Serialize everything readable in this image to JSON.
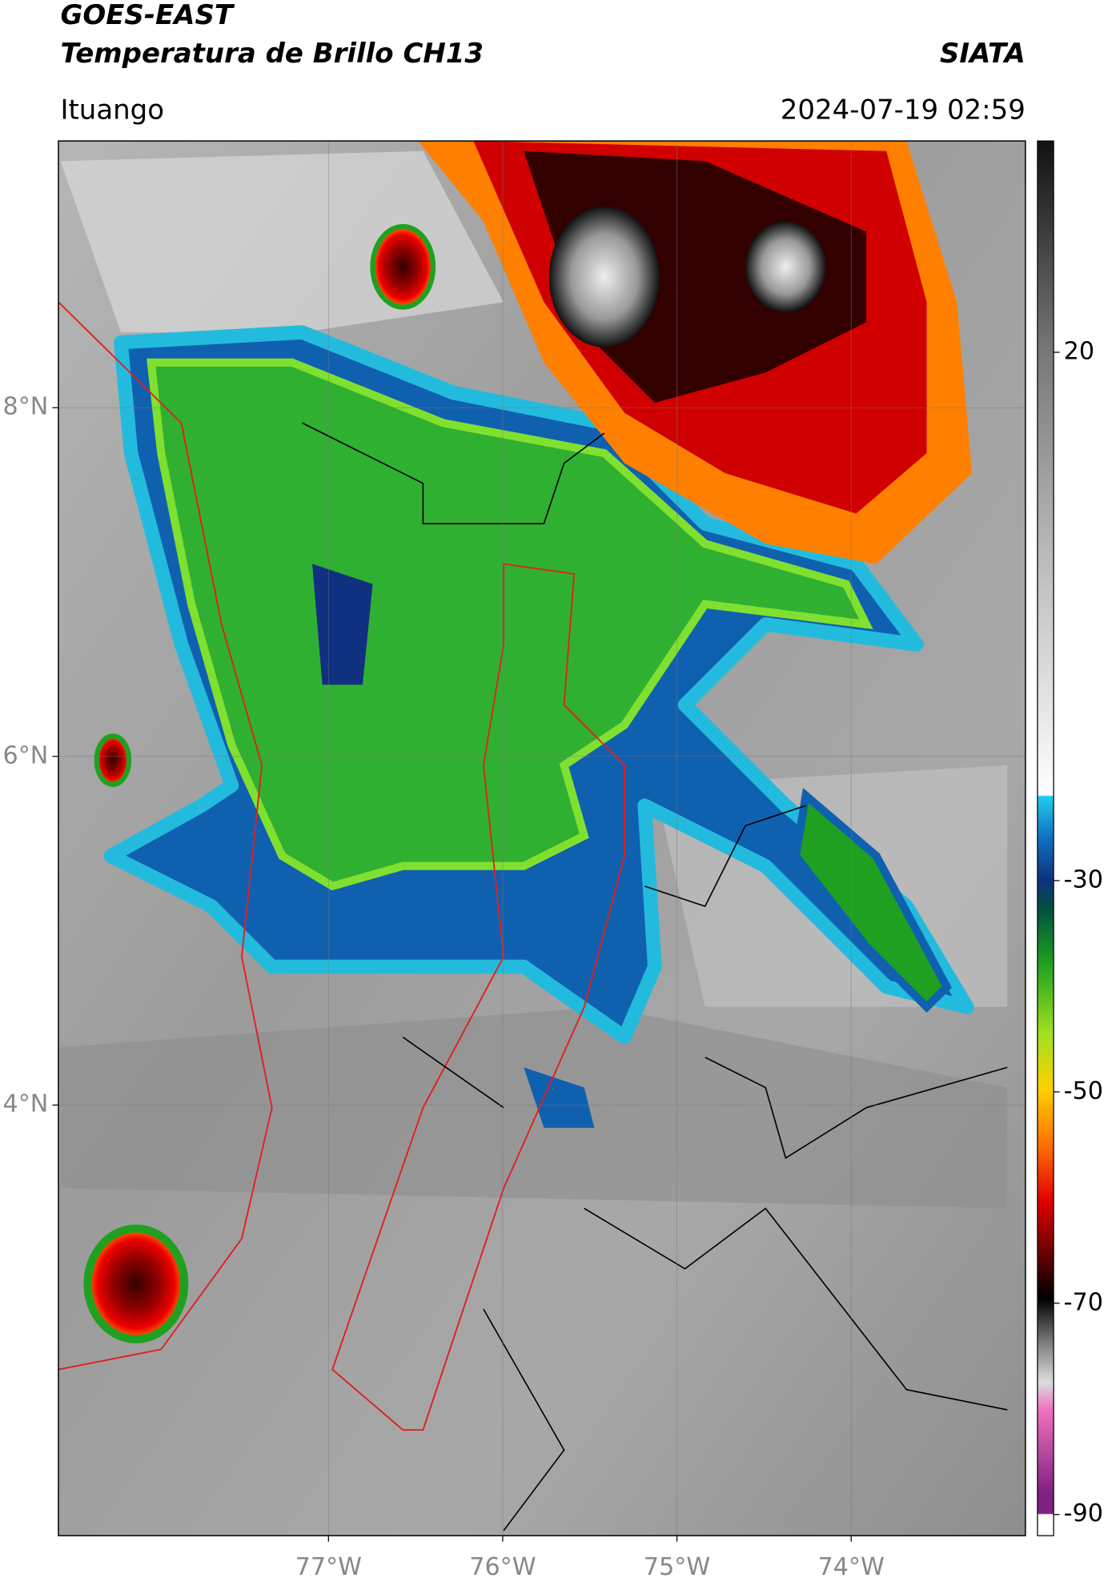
{
  "header": {
    "title": "GOES-EAST",
    "subtitle": "Temperatura de Brillo CH13",
    "source": "SIATA",
    "location": "Ituango",
    "datetime": "2024-07-19 02:59"
  },
  "map": {
    "lonlim": [
      -78.55,
      -73.0
    ],
    "latlim": [
      1.53,
      9.53
    ],
    "lonticks": [
      {
        "value": -77,
        "label": "77°W"
      },
      {
        "value": -76,
        "label": "76°W"
      },
      {
        "value": -75,
        "label": "75°W"
      },
      {
        "value": -74,
        "label": "74°W"
      }
    ],
    "latticks": [
      {
        "value": 8,
        "label": "8°N"
      },
      {
        "value": 6,
        "label": "6°N"
      },
      {
        "value": 4,
        "label": "4°N"
      }
    ],
    "grid": true
  },
  "colorbar": {
    "clim": [
      -92,
      40
    ],
    "ticks": [
      20,
      -30,
      -50,
      -70,
      -90
    ]
  }
}
